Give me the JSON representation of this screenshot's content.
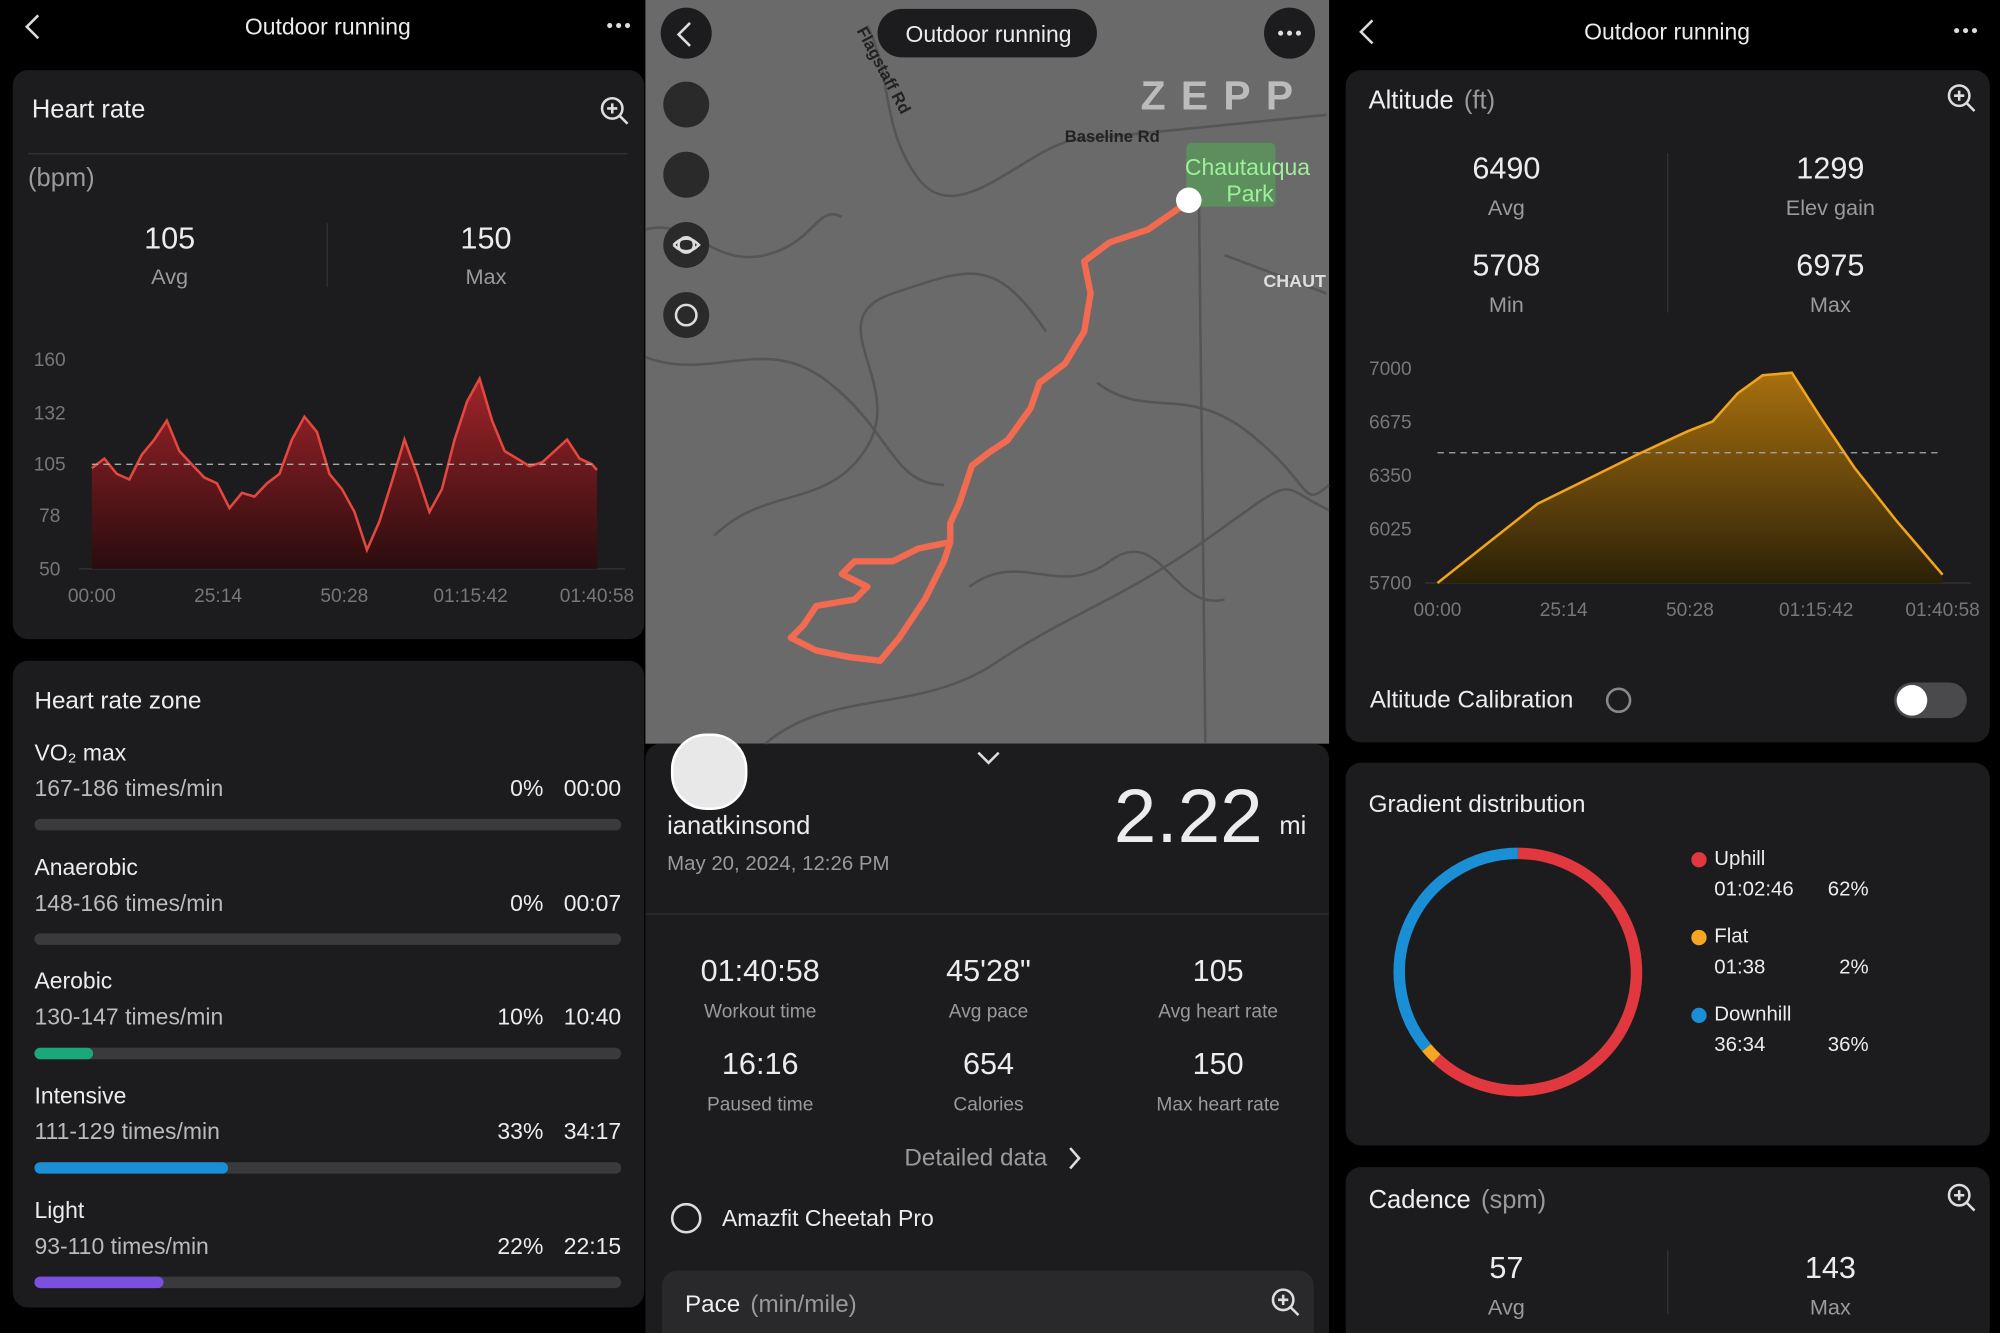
{
  "left": {
    "header_title": "Outdoor running",
    "heart_rate": {
      "title": "Heart rate",
      "unit": "(bpm)",
      "avg": 105,
      "avg_label": "Avg",
      "max": 150,
      "max_label": "Max",
      "chart": {
        "type": "area",
        "color": "#e5473f",
        "x": [
          0,
          150,
          300,
          450,
          600,
          750,
          900,
          1050,
          1200,
          1350,
          1500,
          1650,
          1800,
          1950,
          2100,
          2250,
          2400,
          2550,
          2700,
          2850,
          3000,
          3150,
          3300,
          3450,
          3600,
          3750,
          3900,
          4050,
          4200,
          4350,
          4500,
          4650,
          4800,
          4950,
          5100,
          5250,
          5400,
          5550,
          5700,
          5850,
          6000,
          6058
        ],
        "values": [
          103,
          108,
          100,
          97,
          110,
          118,
          128,
          112,
          105,
          98,
          95,
          82,
          90,
          88,
          95,
          100,
          118,
          130,
          122,
          100,
          92,
          80,
          60,
          75,
          96,
          118,
          100,
          80,
          92,
          118,
          138,
          150,
          128,
          112,
          108,
          104,
          106,
          112,
          118,
          108,
          105,
          102
        ],
        "xlim": [
          0,
          6058
        ],
        "ylim": [
          50,
          160
        ],
        "yticks": [
          50,
          78,
          105,
          132,
          160
        ],
        "xticks": [
          {
            "value": 0,
            "label": "00:00"
          },
          {
            "value": 1514,
            "label": "25:14"
          },
          {
            "value": 3028,
            "label": "50:28"
          },
          {
            "value": 4542,
            "label": "01:15:42"
          },
          {
            "value": 6058,
            "label": "01:40:58"
          }
        ]
      }
    },
    "zones": {
      "title": "Heart rate zone",
      "items": [
        {
          "name": "VO₂ max",
          "range": "167-186 times/min",
          "percent": 0,
          "percent_label": "0%",
          "time": "00:00",
          "color": "#3a3a3c"
        },
        {
          "name": "Anaerobic",
          "range": "148-166 times/min",
          "percent": 0,
          "percent_label": "0%",
          "time": "00:07",
          "color": "#3a3a3c"
        },
        {
          "name": "Aerobic",
          "range": "130-147 times/min",
          "percent": 10,
          "percent_label": "10%",
          "time": "10:40",
          "color": "#1aa878"
        },
        {
          "name": "Intensive",
          "range": "111-129 times/min",
          "percent": 33,
          "percent_label": "33%",
          "time": "34:17",
          "color": "#1a8fd6"
        },
        {
          "name": "Light",
          "range": "93-110 times/min",
          "percent": 22,
          "percent_label": "22%",
          "time": "22:15",
          "color": "#7b4fe0"
        }
      ]
    }
  },
  "middle": {
    "header_title": "Outdoor running",
    "map_labels": {
      "road1": "Flagstaff Rd",
      "road2": "Baseline Rd",
      "park1": "Chautauqua",
      "park2": "Park",
      "area": "CHAUT",
      "logo": "ZEPP"
    },
    "user": "ianatkinsond",
    "date": "May 20, 2024, 12:26 PM",
    "distance": 2.22,
    "distance_unit": "mi",
    "stats": [
      {
        "value": "01:40:58",
        "label": "Workout time"
      },
      {
        "value": "45'28\"",
        "label": "Avg pace"
      },
      {
        "value": 105,
        "label": "Avg heart rate"
      },
      {
        "value": "16:16",
        "label": "Paused time"
      },
      {
        "value": 654,
        "label": "Calories"
      },
      {
        "value": 150,
        "label": "Max heart rate"
      }
    ],
    "detailed": "Detailed data",
    "device": "Amazfit Cheetah Pro",
    "pace_title": "Pace",
    "pace_unit": "(min/mile)"
  },
  "right": {
    "header_title": "Outdoor running",
    "altitude": {
      "title": "Altitude",
      "unit": "(ft)",
      "stats": [
        {
          "value": 6490,
          "label": "Avg"
        },
        {
          "value": 1299,
          "label": "Elev gain"
        },
        {
          "value": 5708,
          "label": "Min"
        },
        {
          "value": 6975,
          "label": "Max"
        }
      ],
      "chart": {
        "type": "area",
        "color": "#f0a51c",
        "x": [
          0,
          600,
          1200,
          1800,
          2400,
          3000,
          3300,
          3600,
          3900,
          4250,
          4600,
          5000,
          5500,
          6058
        ],
        "values": [
          5700,
          5940,
          6180,
          6330,
          6480,
          6620,
          6680,
          6850,
          6960,
          6975,
          6700,
          6400,
          6080,
          5750
        ],
        "xlim": [
          0,
          6058
        ],
        "ylim": [
          5700,
          7000
        ],
        "yticks": [
          5700,
          6025,
          6350,
          6675,
          7000
        ],
        "xticks": [
          {
            "value": 0,
            "label": "00:00"
          },
          {
            "value": 1514,
            "label": "25:14"
          },
          {
            "value": 3028,
            "label": "50:28"
          },
          {
            "value": 4542,
            "label": "01:15:42"
          },
          {
            "value": 6058,
            "label": "01:40:58"
          }
        ]
      }
    },
    "calibration": "Altitude Calibration",
    "gradient": {
      "title": "Gradient distribution",
      "items": [
        {
          "name": "Uphill",
          "time": "01:02:46",
          "percent": 62,
          "percent_label": "62%",
          "color": "#e0383e"
        },
        {
          "name": "Flat",
          "time": "01:38",
          "percent": 2,
          "percent_label": "2%",
          "color": "#f5a623"
        },
        {
          "name": "Downhill",
          "time": "36:34",
          "percent": 36,
          "percent_label": "36%",
          "color": "#1a8fd6"
        }
      ]
    },
    "cadence": {
      "title": "Cadence",
      "unit": "(spm)",
      "avg": 57,
      "avg_label": "Avg",
      "max": 143,
      "max_label": "Max"
    }
  }
}
